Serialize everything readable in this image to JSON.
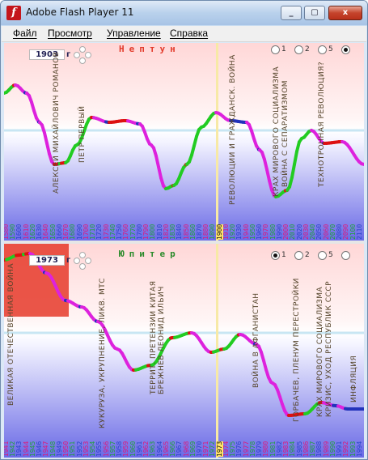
{
  "window": {
    "title": "Adobe Flash Player 11",
    "controls": [
      "_",
      "▢",
      "x"
    ]
  },
  "menu": [
    "Файл",
    "Просмотр",
    "Управление",
    "Справка"
  ],
  "top_panel": {
    "year": "1903",
    "year_suffix": "г",
    "planet": "Нептун",
    "planet_color": "#e23a2a",
    "radio_options": [
      "1",
      "2",
      "5",
      ""
    ],
    "radio_selected": 3,
    "labels": [
      "АЛЕКСЕЙ МИХАЙЛОВИЧ РОМАНОВ",
      "ПЕТР ПЕРВЫЙ",
      "РЕВОЛЮЦИИ И ГРАЖДАНСК. ВОЙНА",
      "КРАХ МИРОВОГО СОЦИАЛИЗМА",
      "ВОЙНА С СЕПАРАТИЗМОМ",
      "ТЕХНОТРОННАЯ РЕВОЛЮЦИЯ?"
    ],
    "ticks": [
      "1580",
      "1590",
      "1600",
      "1610",
      "1620",
      "1630",
      "1640",
      "1650",
      "1660",
      "1670",
      "1680",
      "1690",
      "1700",
      "1710",
      "1720",
      "1730",
      "1740",
      "1750",
      "1760",
      "1770",
      "1780",
      "1790",
      "1800",
      "1810",
      "1820",
      "1830",
      "1840",
      "1850",
      "1860",
      "1870",
      "1880",
      "1890",
      "1900",
      "1910",
      "1920",
      "1930",
      "1940",
      "1950",
      "1960",
      "1970",
      "1980",
      "1990",
      "2000",
      "2010",
      "2020",
      "2030",
      "2040",
      "2050",
      "2060",
      "2070",
      "2080",
      "2090",
      "2100",
      "2110"
    ]
  },
  "bottom_panel": {
    "year": "1973",
    "year_suffix": "г",
    "planet": "Юпитер",
    "planet_color": "#2a8a2a",
    "radio_options": [
      "1",
      "2",
      "5",
      ""
    ],
    "radio_selected": 0,
    "labels": [
      "ВЕЛИКАЯ ОТЕЧЕСТВЕННАЯ ВОЙНА",
      "КУКУРУЗА, УКРУПНЕНИЕ, ЛИКВ. МТС",
      "ТЕРРИТ. ПРЕТЕНЗИИ КИТАЯ",
      "БРЕЖНЕВ ЛЕОНИД ИЛЬИЧ",
      "ВОЙНА В АФГАНИСТАН",
      "ГОРБАЧЕВ, ПЛЕНУМ ПЕРЕСТРОЙКИ",
      "КРАХ МИРОВОГО СОЦИАЛИЗМА",
      "КРИЗИС, УХОД РЕСПУБЛИК СССР",
      "ИНФЛЯЦИЯ"
    ],
    "ticks": [
      "1941",
      "1942",
      "1943",
      "1944",
      "1945",
      "1946",
      "1947",
      "1948",
      "1949",
      "1950",
      "1951",
      "1952",
      "1953",
      "1954",
      "1955",
      "1956",
      "1957",
      "1958",
      "1959",
      "1960",
      "1961",
      "1962",
      "1963",
      "1964",
      "1965",
      "1966",
      "1967",
      "1968",
      "1969",
      "1970",
      "1971",
      "1972",
      "1973",
      "1974",
      "1975",
      "1976",
      "1977",
      "1978",
      "1979",
      "1980",
      "1981",
      "1982",
      "1983",
      "1984",
      "1985",
      "1986",
      "1987",
      "1988",
      "1989",
      "1990",
      "1991",
      "1992",
      "1993",
      "1994"
    ]
  },
  "colors": {
    "phase_up": "#22cc22",
    "phase_peak": "#dd1111",
    "phase_down": "#dd22dd",
    "phase_trough": "#2233bb"
  }
}
